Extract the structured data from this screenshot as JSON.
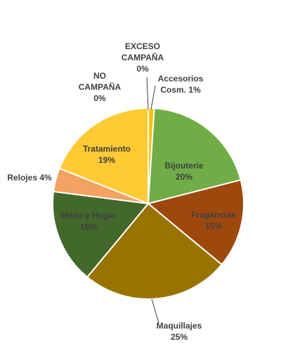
{
  "chart_data": {
    "type": "pie",
    "title": "",
    "slices": [
      {
        "id": "exceso-campana",
        "lines": [
          "EXCESO",
          "CAMPAÑA",
          "0%"
        ],
        "value": 0,
        "color": "#FFC000",
        "text_color": "#404040"
      },
      {
        "id": "accesorios-cosm",
        "lines": [
          "Accesorios",
          "Cosm. 1%"
        ],
        "value": 1,
        "color": "#FFC000",
        "text_color": "#404040"
      },
      {
        "id": "bijouterie",
        "lines": [
          "Bijouterie",
          "20%"
        ],
        "value": 20,
        "color": "#70AD47",
        "text_color": "#404040"
      },
      {
        "id": "fragancias",
        "lines": [
          "Fragancias",
          "15%"
        ],
        "value": 15,
        "color": "#9E480E",
        "text_color": "#404040"
      },
      {
        "id": "maquillajes",
        "lines": [
          "Maquillajes",
          "25%"
        ],
        "value": 25,
        "color": "#997300",
        "text_color": "#404040"
      },
      {
        "id": "moda-y-hogar",
        "lines": [
          "Moda y Hogar",
          "16%"
        ],
        "value": 16,
        "color": "#43682B",
        "text_color": "#404040"
      },
      {
        "id": "relojes",
        "lines": [
          "Relojes 4%"
        ],
        "value": 4,
        "color": "#F4A261",
        "text_color": "#404040"
      },
      {
        "id": "tratamiento",
        "lines": [
          "Tratamiento",
          "19%"
        ],
        "value": 19,
        "color": "#FFCA33",
        "text_color": "#404040"
      },
      {
        "id": "no-campana",
        "lines": [
          "NO",
          "CAMPAÑA",
          "0%"
        ],
        "value": 0,
        "color": "#FFC000",
        "text_color": "#404040"
      }
    ]
  }
}
